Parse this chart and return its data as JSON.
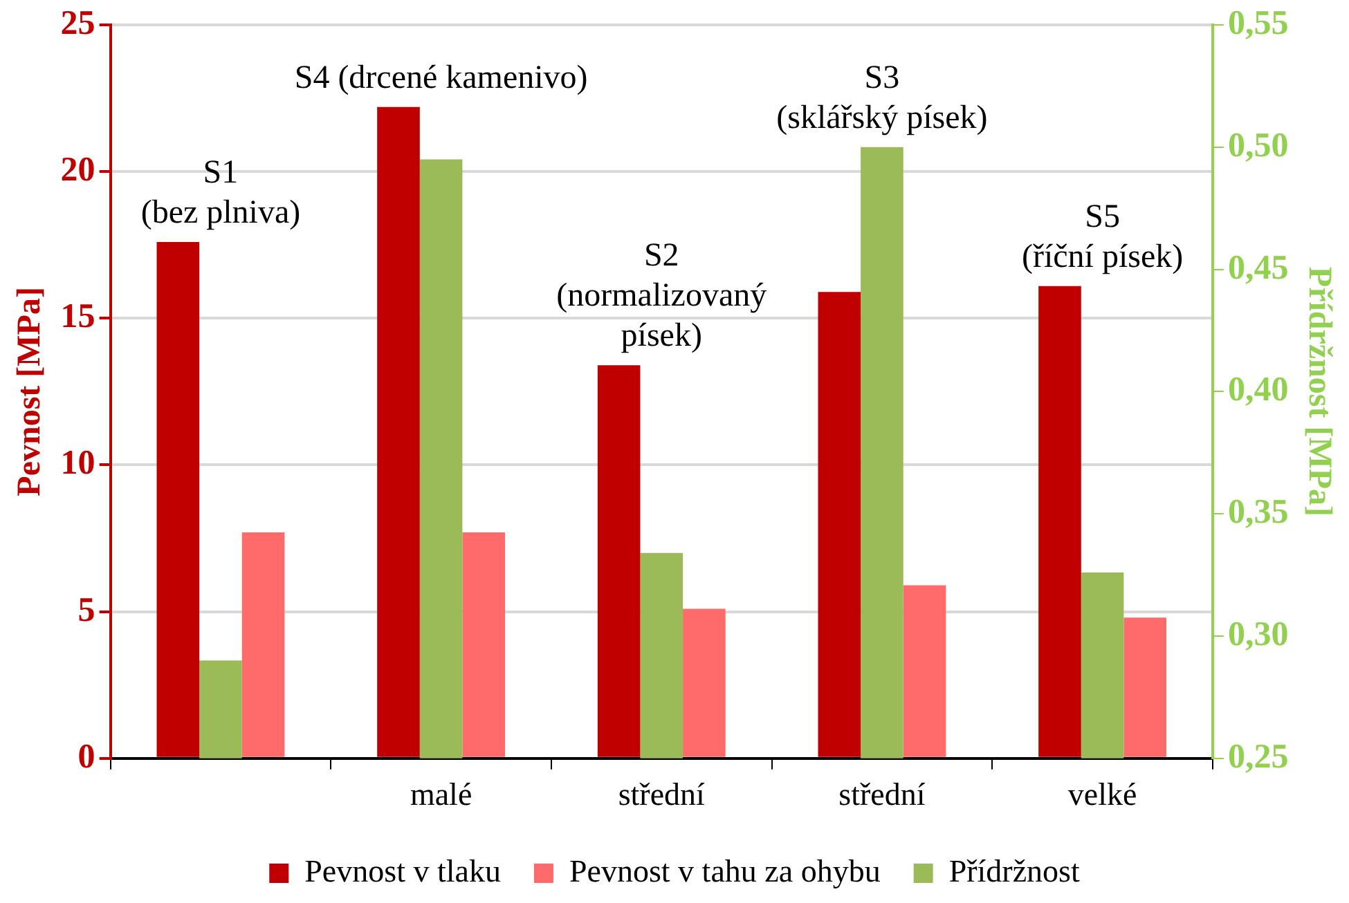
{
  "chart_data": {
    "type": "bar",
    "ylabel": "Pevnost [MPa]",
    "y2label": "Přídržnost [MPa]",
    "categories": [
      null,
      "malé",
      "střední",
      "střední",
      "velké"
    ],
    "series": [
      {
        "name": "Pevnost v tlaku",
        "color": "#c00000",
        "values": [
          17.6,
          22.2,
          13.4,
          15.9,
          16.1
        ]
      },
      {
        "name": "Přídržnost",
        "color": "#9bbb59",
        "axis": "y2",
        "values": [
          0.29,
          0.495,
          0.334,
          0.5,
          0.326
        ]
      },
      {
        "name": "Pevnost v tahu za ohybu",
        "color": "#ff6b6b",
        "values": [
          7.7,
          7.7,
          5.1,
          5.9,
          4.8
        ]
      }
    ],
    "ylim": [
      0,
      25
    ],
    "yticks": [
      0,
      5,
      10,
      15,
      20,
      25
    ],
    "y2lim": [
      0.25,
      0.55
    ],
    "y2ticks": [
      {
        "value": 0.25,
        "label": "0,25"
      },
      {
        "value": 0.3,
        "label": "0,30"
      },
      {
        "value": 0.35,
        "label": "0,35"
      },
      {
        "value": 0.4,
        "label": "0,40"
      },
      {
        "value": 0.45,
        "label": "0,45"
      },
      {
        "value": 0.5,
        "label": "0,50"
      },
      {
        "value": 0.55,
        "label": "0,55"
      }
    ],
    "annotations": [
      "S1\n(bez plniva)",
      "S4 (drcené kamenivo)",
      "S2\n(normalizovaný\npísek)",
      "S3\n(sklářský písek)",
      "S5\n(říční písek)"
    ],
    "grid": "y",
    "legend": "bottom"
  }
}
